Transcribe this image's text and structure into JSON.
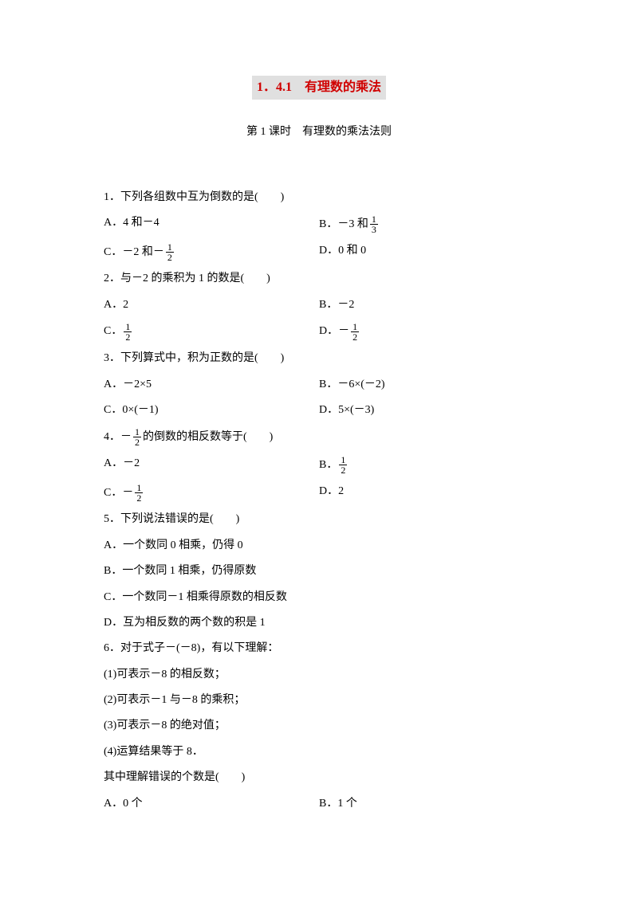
{
  "title": "1．4.1　有理数的乘法",
  "subtitle": "第 1 课时　有理数的乘法法则",
  "q1": {
    "stem": "1．下列各组数中互为倒数的是(　　)",
    "A": "A．4 和－4",
    "B_pre": "B．－3 和",
    "C_pre": "C．－2 和－",
    "D": "D．0 和 0"
  },
  "q2": {
    "stem": "2．与－2 的乘积为 1 的数是(　　)",
    "A": "A．2",
    "B": "B．－2",
    "C_pre": "C．",
    "D_pre": "D．－"
  },
  "q3": {
    "stem": "3．下列算式中，积为正数的是(　　)",
    "A": "A．－2×5",
    "B": "B．－6×(－2)",
    "C": "C．0×(－1)",
    "D": "D．5×(－3)"
  },
  "q4": {
    "stem_pre": "4．－",
    "stem_post": "的倒数的相反数等于(　　)",
    "A": "A．－2",
    "B_pre": "B．",
    "C_pre": "C．－",
    "D": "D．2"
  },
  "q5": {
    "stem": "5．下列说法错误的是(　　)",
    "A": "A．一个数同 0 相乘，仍得 0",
    "B": "B．一个数同 1 相乘，仍得原数",
    "C": "C．一个数同－1 相乘得原数的相反数",
    "D": "D．互为相反数的两个数的积是 1"
  },
  "q6": {
    "stem": "6．对于式子－(－8)，有以下理解：",
    "l1": "(1)可表示－8 的相反数；",
    "l2": "(2)可表示－1 与－8 的乘积；",
    "l3": "(3)可表示－8 的绝对值；",
    "l4": "(4)运算结果等于 8．",
    "l5": "其中理解错误的个数是(　　)",
    "A": "A．0 个",
    "B": "B．1 个"
  },
  "fractions": {
    "one_third": {
      "num": "1",
      "den": "3"
    },
    "one_half": {
      "num": "1",
      "den": "2"
    }
  }
}
